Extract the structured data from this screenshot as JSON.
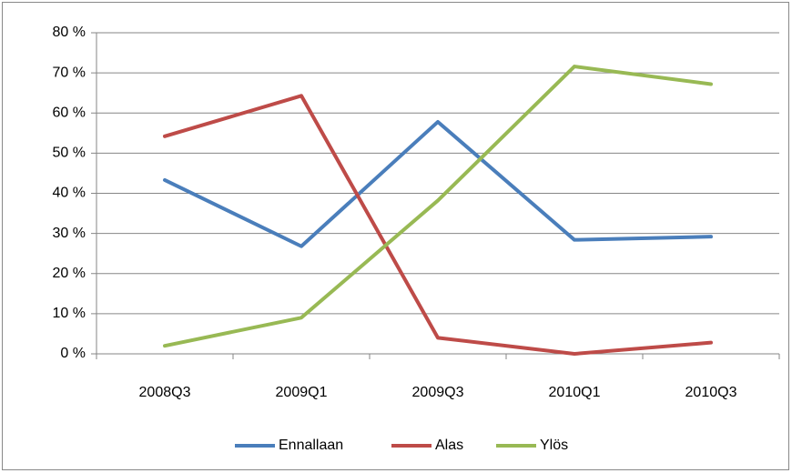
{
  "chart_data": {
    "type": "line",
    "categories": [
      "2008Q3",
      "2009Q1",
      "2009Q3",
      "2010Q1",
      "2010Q3"
    ],
    "series": [
      {
        "name": "Ennallaan",
        "color": "#4a7ebb",
        "values": [
          43.3,
          26.8,
          57.8,
          28.4,
          29.2
        ]
      },
      {
        "name": "Alas",
        "color": "#be4b48",
        "values": [
          54.2,
          64.3,
          4.0,
          0,
          2.8
        ]
      },
      {
        "name": "Ylös",
        "color": "#98b954",
        "values": [
          2.0,
          9.0,
          38.2,
          71.6,
          67.2
        ]
      }
    ],
    "ylim": [
      0,
      80
    ],
    "yticks": [
      {
        "value": 0,
        "label": "0 %"
      },
      {
        "value": 10,
        "label": "10 %"
      },
      {
        "value": 20,
        "label": "20 %"
      },
      {
        "value": 30,
        "label": "30 %"
      },
      {
        "value": 40,
        "label": "40 %"
      },
      {
        "value": 50,
        "label": "50 %"
      },
      {
        "value": 60,
        "label": "60 %"
      },
      {
        "value": 70,
        "label": "70 %"
      },
      {
        "value": 80,
        "label": "80 %"
      }
    ],
    "grid": true,
    "legend": "bottom"
  }
}
